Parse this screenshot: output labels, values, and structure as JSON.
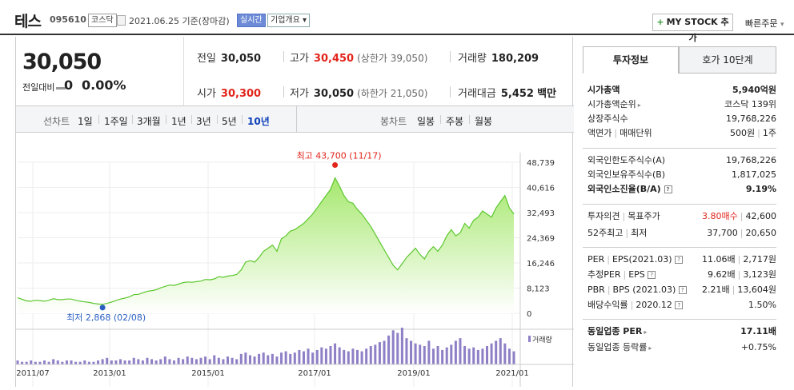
{
  "header": {
    "name": "테스",
    "code": "095610",
    "market_badge": "코스닥",
    "date_text": "2021.06.25 기준(장마감)",
    "live_badge": "실시간",
    "overview_badge": "기업개요",
    "overview_arrow": "▾",
    "mystock_label": "MY STOCK 추가",
    "mystock_plus": "+",
    "quick_order": "빠른주문",
    "quick_order_arrow": "▾"
  },
  "price": {
    "current": "30,050",
    "change_label": "전일대비",
    "change": "0",
    "change_pct": "0.00%"
  },
  "stats": {
    "prev_label": "전일",
    "prev": "30,050",
    "high_label": "고가",
    "high": "30,450",
    "upper_limit": "(상한가 39,050)",
    "volume_label": "거래량",
    "volume": "180,209",
    "open_label": "시가",
    "open": "30,300",
    "low_label": "저가",
    "low": "30,050",
    "lower_limit": "(하한가 21,050)",
    "amount_label": "거래대금",
    "amount": "5,452",
    "amount_unit": "백만"
  },
  "chart_tabs": {
    "line_label": "선차트",
    "periods": [
      "1일",
      "1주일",
      "3개월",
      "1년",
      "3년",
      "5년",
      "10년"
    ],
    "active_period": "10년",
    "candle_label": "봉차트",
    "candles": [
      "일봉",
      "주봉",
      "월봉"
    ]
  },
  "chart_data": {
    "type": "area",
    "x_ticks": [
      "2011/07",
      "2013/01",
      "2015/01",
      "2017/01",
      "2019/01",
      "2021/01"
    ],
    "y_ticks": [
      "48,739",
      "40,616",
      "32,493",
      "24,369",
      "16,246",
      "8,123",
      "0"
    ],
    "ylim": [
      0,
      48739
    ],
    "high_label": "최고 43,700 (11/17)",
    "low_label": "최저 2,868 (02/08)",
    "volume_legend": "거래량",
    "series": [
      {
        "values": [
          5000,
          4500,
          4000,
          3900,
          4200,
          4100,
          3900,
          4200,
          4700,
          4400,
          4400,
          4600,
          4600,
          4200,
          3900,
          3700,
          3500,
          3200,
          3000,
          2868,
          3200,
          3600,
          4100,
          4600,
          4900,
          5300,
          6000,
          6100,
          6600,
          7100,
          7300,
          7600,
          8200,
          8700,
          9100,
          9000,
          9400,
          9900,
          10100,
          10000,
          10200,
          10400,
          10900,
          10800,
          11100,
          11800,
          11600,
          12000,
          12200,
          12500,
          14000,
          16500,
          17000,
          16500,
          18000,
          20000,
          21000,
          22000,
          20000,
          24000,
          25000,
          26500,
          27000,
          28000,
          29000,
          30500,
          32000,
          34000,
          36000,
          38000,
          40000,
          43700,
          41000,
          38000,
          36000,
          35500,
          33500,
          32000,
          30000,
          28000,
          25500,
          23000,
          20500,
          18000,
          15500,
          14000,
          16000,
          18000,
          19500,
          21000,
          19000,
          17500,
          20000,
          21500,
          20000,
          22000,
          25000,
          27000,
          25000,
          26000,
          29000,
          27500,
          30000,
          31000,
          33000,
          32000,
          31000,
          34000,
          36000,
          38000,
          34000,
          32000
        ]
      },
      {
        "name": "거래량",
        "values": [
          3,
          2,
          2,
          3,
          2,
          2,
          3,
          2,
          4,
          3,
          2,
          3,
          3,
          2,
          2,
          3,
          2,
          2,
          3,
          4,
          5,
          3,
          3,
          4,
          3,
          3,
          5,
          4,
          3,
          5,
          4,
          3,
          4,
          6,
          4,
          3,
          5,
          4,
          6,
          5,
          4,
          5,
          6,
          4,
          7,
          5,
          4,
          6,
          5,
          4,
          8,
          9,
          7,
          6,
          8,
          9,
          7,
          8,
          6,
          9,
          10,
          8,
          9,
          11,
          10,
          12,
          9,
          11,
          13,
          12,
          14,
          16,
          13,
          11,
          10,
          12,
          11,
          10,
          12,
          14,
          15,
          17,
          18,
          22,
          26,
          24,
          28,
          20,
          18,
          16,
          15,
          14,
          18,
          12,
          14,
          11,
          13,
          15,
          18,
          20,
          14,
          12,
          13,
          11,
          12,
          14,
          16,
          18,
          20,
          16,
          12,
          10
        ]
      }
    ]
  },
  "right_panel": {
    "tab_info": "투자정보",
    "tab_hoga": "호가 10단계",
    "market_cap_label": "시가총액",
    "market_cap": "5,940억원",
    "market_cap_rank_label": "시가총액순위",
    "market_cap_rank": "코스닥 139위",
    "shares_label": "상장주식수",
    "shares": "19,768,226",
    "face_value_label": "액면가",
    "trade_unit_label": "매매단위",
    "face_value": "500원",
    "trade_unit": "1주",
    "foreign_limit_label": "외국인한도주식수(A)",
    "foreign_limit": "19,768,226",
    "foreign_hold_label": "외국인보유주식수(B)",
    "foreign_hold": "1,817,025",
    "foreign_rate_label": "외국인소진율(B/A)",
    "foreign_rate": "9.19%",
    "opinion_label": "투자의견",
    "target_label": "목표주가",
    "opinion": "3.80매수",
    "target": "42,600",
    "week52_high_label": "52주최고",
    "week52_low_label": "최저",
    "week52_high": "37,700",
    "week52_low": "20,650",
    "per_label": "PER",
    "eps_label": "EPS(2021.03)",
    "per": "11.06배",
    "eps": "2,717원",
    "est_per_label": "추정PER",
    "est_eps_label": "EPS",
    "est_per": "9.62배",
    "est_eps": "3,123원",
    "pbr_label": "PBR",
    "bps_label": "BPS (2021.03)",
    "pbr": "2.21배",
    "bps": "13,604원",
    "div_label": "배당수익률",
    "div_date": "2020.12",
    "div": "1.50%",
    "ind_per_label": "동일업종 PER",
    "ind_per": "17.11배",
    "ind_rate_label": "동일업종 등락률",
    "ind_rate": "+0.75%"
  },
  "colors": {
    "up": "#e1251b",
    "active_tab": "#0d3fb9",
    "line": "#5cc72e",
    "area_top": "#a6e86e",
    "low_marker": "#2a5fc2",
    "volume": "#8e7fc6"
  }
}
